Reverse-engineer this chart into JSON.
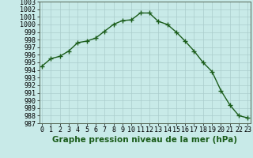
{
  "x": [
    0,
    1,
    2,
    3,
    4,
    5,
    6,
    7,
    8,
    9,
    10,
    11,
    12,
    13,
    14,
    15,
    16,
    17,
    18,
    19,
    20,
    21,
    22,
    23
  ],
  "y": [
    994.5,
    995.5,
    995.8,
    996.5,
    997.6,
    997.8,
    998.2,
    999.1,
    1000.0,
    1000.5,
    1000.6,
    1001.5,
    1001.5,
    1000.4,
    1000.0,
    999.0,
    997.8,
    996.5,
    995.0,
    993.8,
    991.3,
    989.4,
    988.0,
    987.7
  ],
  "line_color": "#1a5c1a",
  "marker": "+",
  "marker_size": 4,
  "bg_color": "#c8eae8",
  "grid_color": "#aacccc",
  "xlabel": "Graphe pression niveau de la mer (hPa)",
  "xlabel_fontsize": 7.5,
  "ylabel_fontsize": 6,
  "tick_fontsize": 6,
  "ylim": [
    987,
    1003
  ],
  "xlim": [
    -0.3,
    23.3
  ],
  "line_width": 1.0
}
